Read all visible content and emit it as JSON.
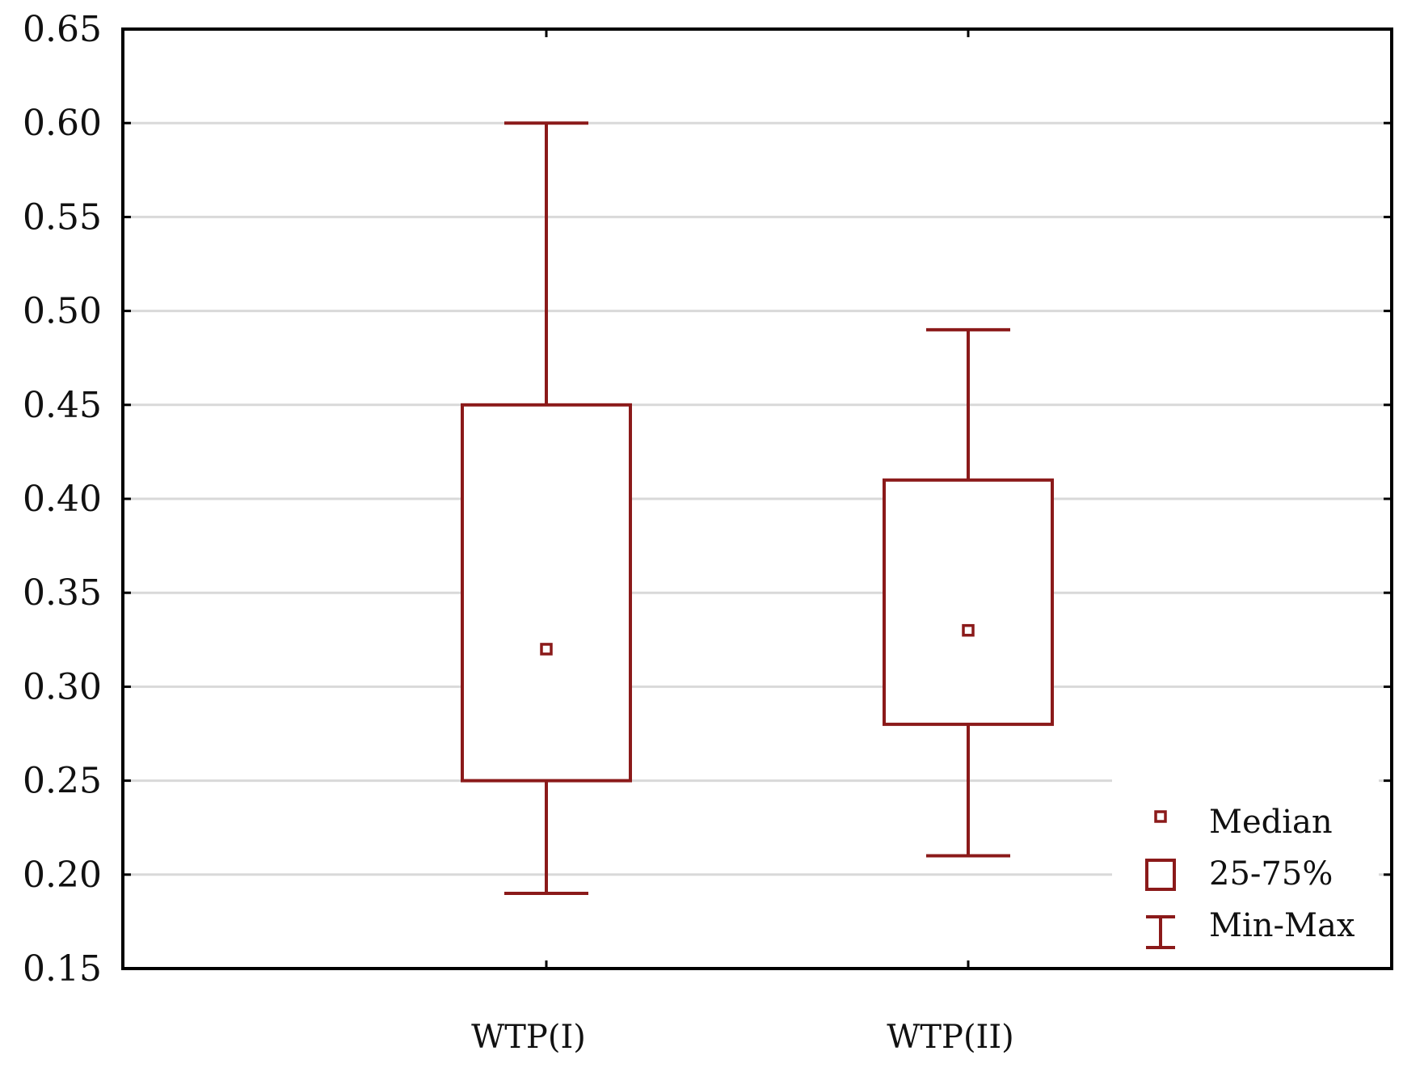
{
  "chart_data": {
    "type": "boxplot",
    "title": "",
    "xlabel": "",
    "ylabel": "",
    "ylim": [
      0.15,
      0.65
    ],
    "yticks": [
      "0.65",
      "0.60",
      "0.55",
      "0.50",
      "0.45",
      "0.40",
      "0.35",
      "0.30",
      "0.25",
      "0.20",
      "0.15"
    ],
    "grid": "horizontal",
    "categories": [
      "WTP(I)",
      "WTP(II)"
    ],
    "series": [
      {
        "category": "WTP(I)",
        "min": 0.19,
        "q1": 0.25,
        "median": 0.32,
        "q3": 0.45,
        "max": 0.6
      },
      {
        "category": "WTP(II)",
        "min": 0.21,
        "q1": 0.28,
        "median": 0.33,
        "q3": 0.41,
        "max": 0.49
      }
    ],
    "legend": {
      "placement": "bottom-right",
      "entries": [
        "Median",
        "25-75%",
        "Min-Max"
      ]
    },
    "colors": {
      "box": "#8b1a1a",
      "axis": "#000000",
      "grid": "#d9d9d9"
    }
  }
}
